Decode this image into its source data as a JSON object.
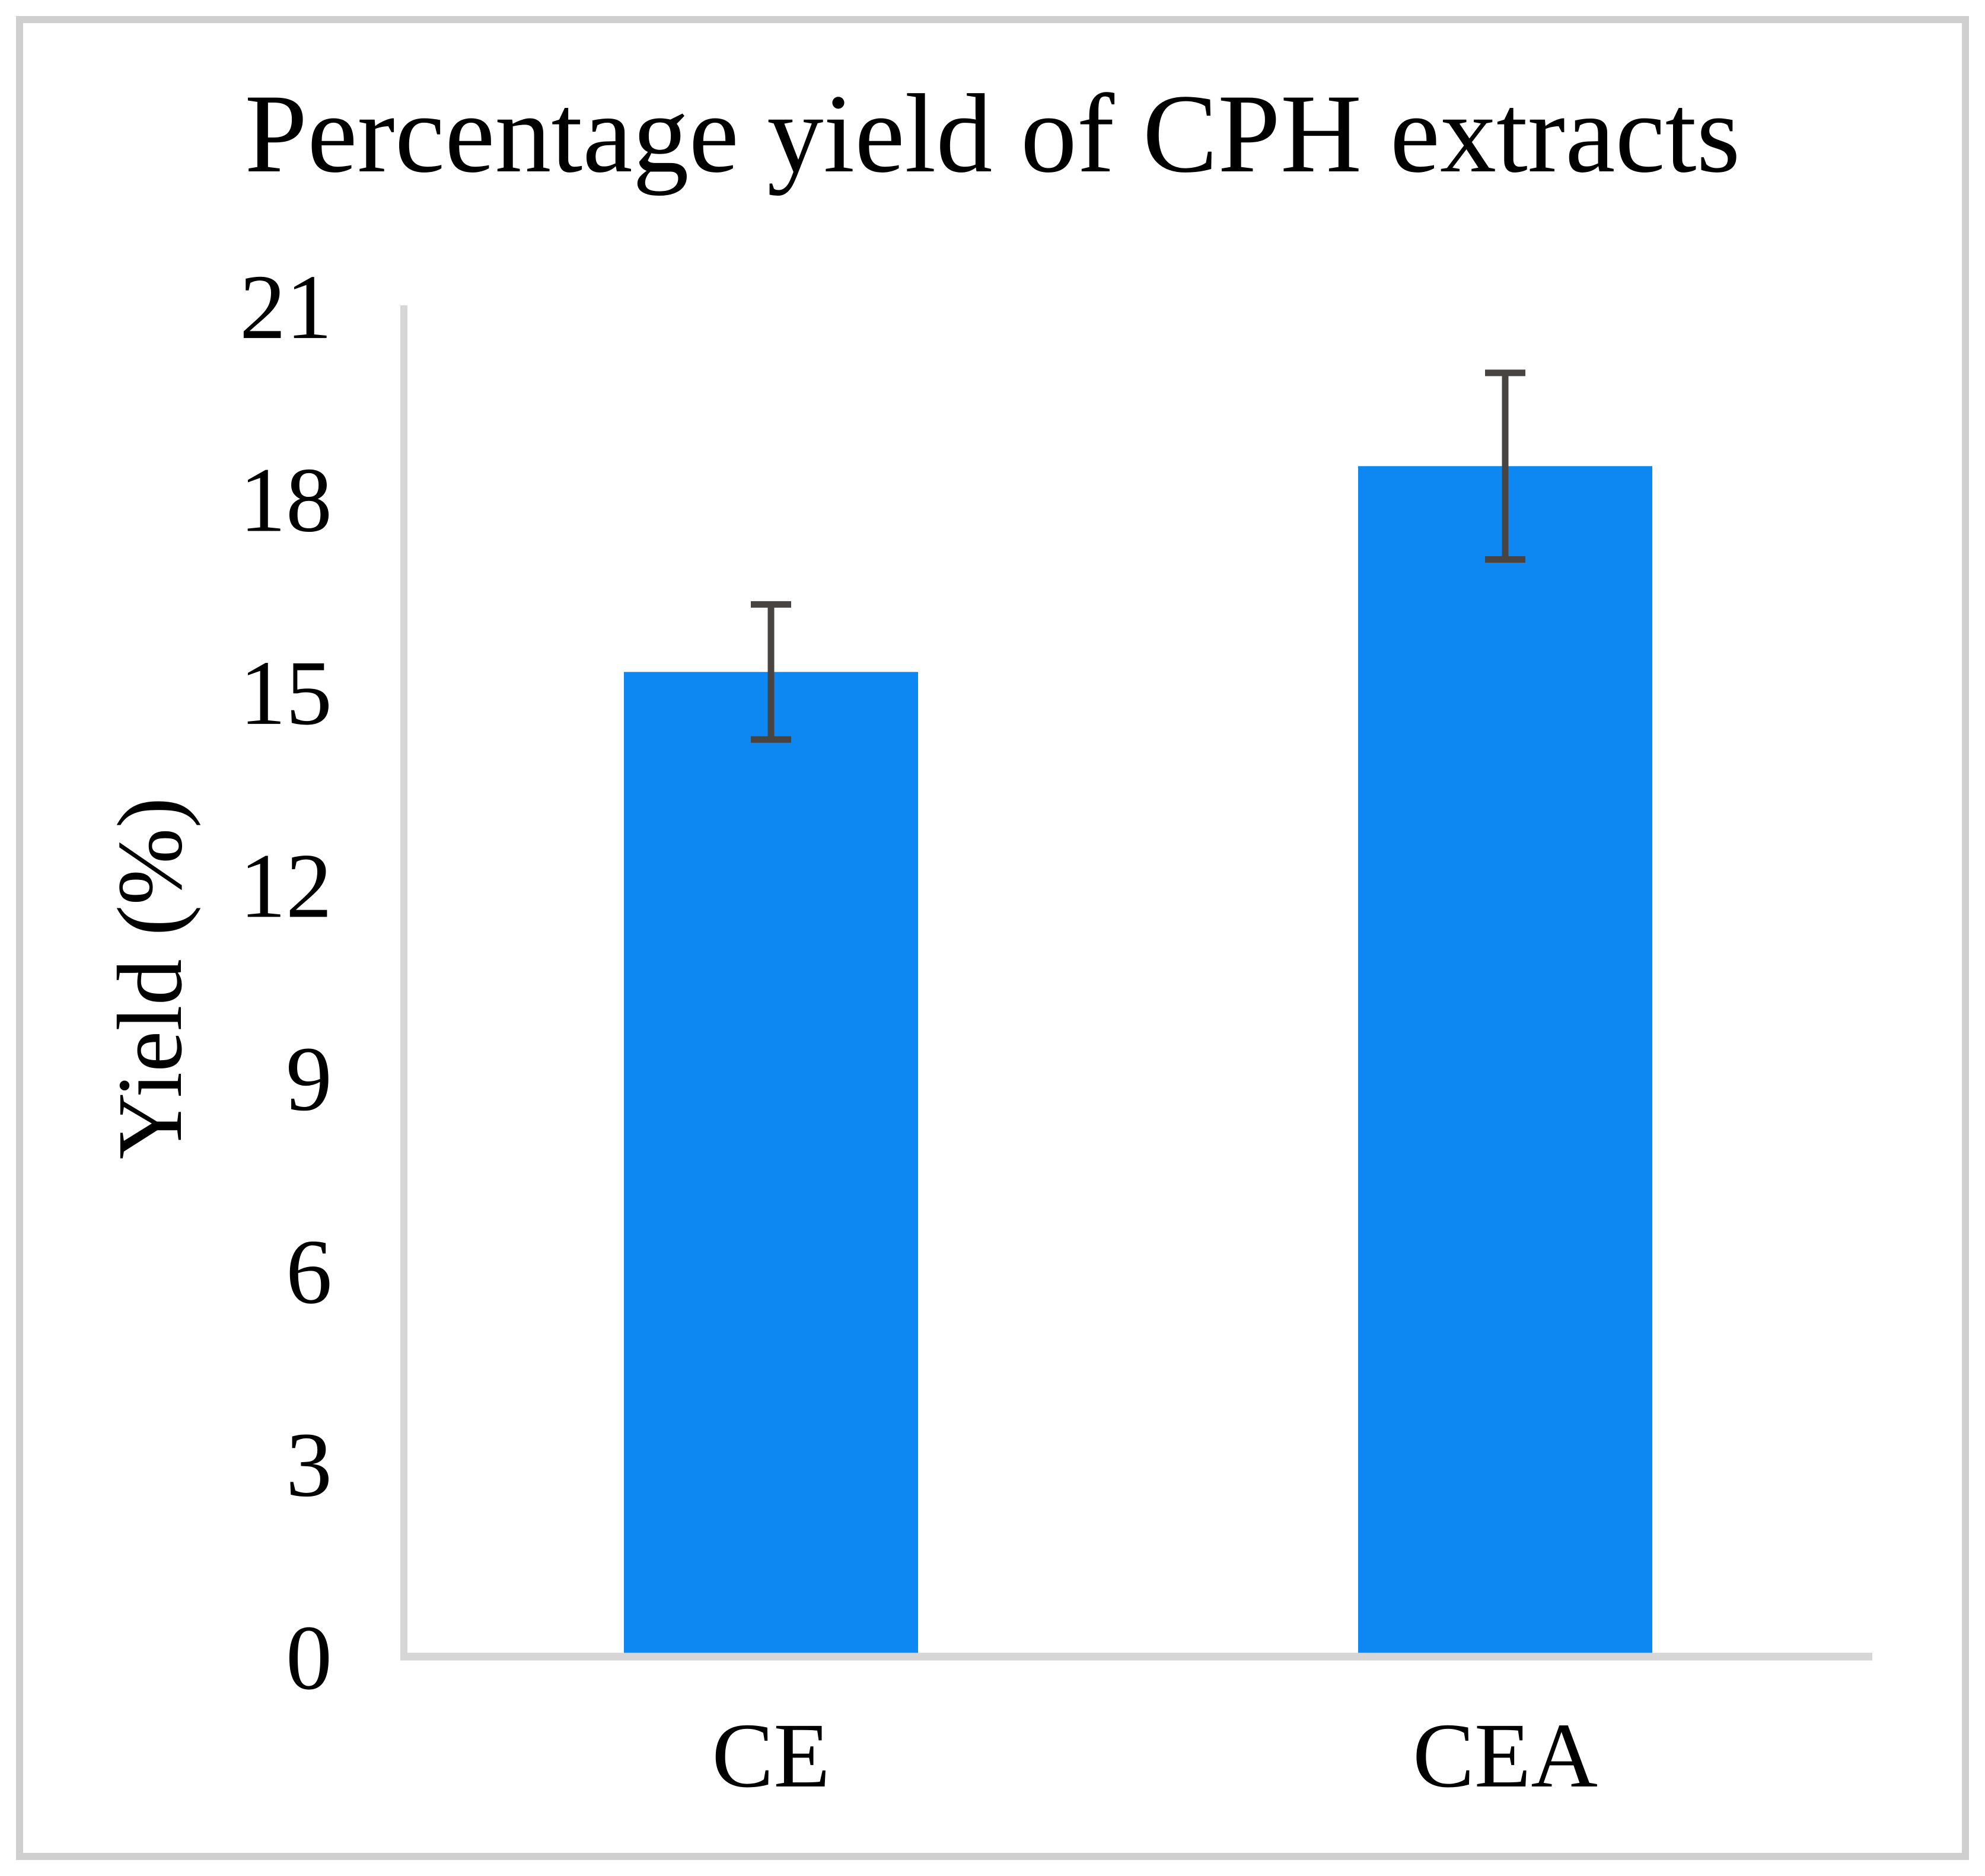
{
  "page": {
    "background_color": "#ffffff",
    "frame_color": "#cfcfcf"
  },
  "chart_data": {
    "type": "bar",
    "title": "Percentage yield of CPH extracts",
    "xlabel": "",
    "ylabel": "Yield (%)",
    "categories": [
      "CE",
      "CEA"
    ],
    "series": [
      {
        "name": "Yield (%)",
        "values": [
          15.3,
          18.5
        ],
        "errors": [
          1.05,
          1.45
        ]
      }
    ],
    "yticks": [
      0,
      3,
      6,
      9,
      12,
      15,
      18,
      21
    ],
    "ylim": [
      0,
      21
    ],
    "grid": false,
    "legend": false,
    "bar_color": "#0d87f2",
    "error_bar_color": "#474442",
    "axis_color": "#d6d6d6",
    "text_color": "#000000"
  }
}
